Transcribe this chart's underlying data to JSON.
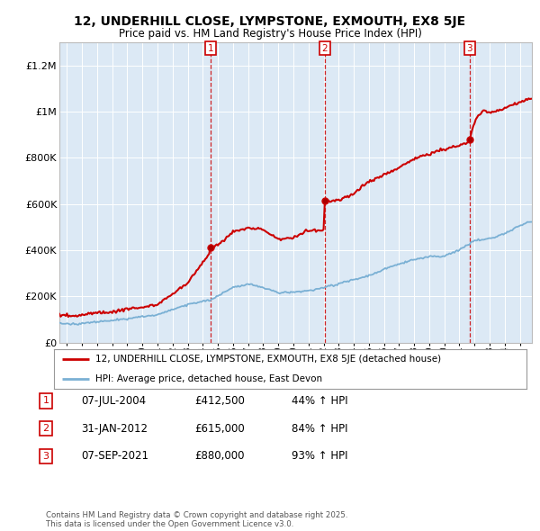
{
  "title": "12, UNDERHILL CLOSE, LYMPSTONE, EXMOUTH, EX8 5JE",
  "subtitle": "Price paid vs. HM Land Registry's House Price Index (HPI)",
  "bg_color": "#dce9f5",
  "red_line_label": "12, UNDERHILL CLOSE, LYMPSTONE, EXMOUTH, EX8 5JE (detached house)",
  "blue_line_label": "HPI: Average price, detached house, East Devon",
  "transactions": [
    {
      "num": 1,
      "date": "07-JUL-2004",
      "price": "£412,500",
      "pct": "44% ↑ HPI",
      "year": 2004.52,
      "price_val": 412500
    },
    {
      "num": 2,
      "date": "31-JAN-2012",
      "price": "£615,000",
      "pct": "84% ↑ HPI",
      "year": 2012.08,
      "price_val": 615000
    },
    {
      "num": 3,
      "date": "07-SEP-2021",
      "price": "£880,000",
      "pct": "93% ↑ HPI",
      "year": 2021.68,
      "price_val": 880000
    }
  ],
  "footer": "Contains HM Land Registry data © Crown copyright and database right 2025.\nThis data is licensed under the Open Government Licence v3.0.",
  "ylim": [
    0,
    1300000
  ],
  "yticks": [
    0,
    200000,
    400000,
    600000,
    800000,
    1000000,
    1200000
  ],
  "ytick_labels": [
    "£0",
    "£200K",
    "£400K",
    "£600K",
    "£800K",
    "£1M",
    "£1.2M"
  ],
  "xlim_start": 1994.5,
  "xlim_end": 2025.8,
  "red_color": "#cc0000",
  "blue_color": "#7ab0d4"
}
